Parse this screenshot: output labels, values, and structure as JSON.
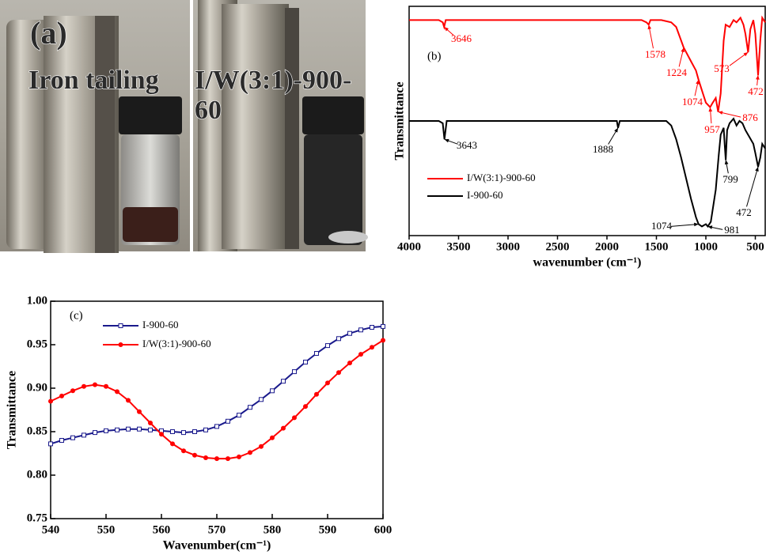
{
  "panel_a": {
    "label": "(a)",
    "left_caption": "Iron tailing",
    "right_caption": [
      "I/W(3:1)-900-",
      "60"
    ]
  },
  "chart_data": [
    {
      "type": "line",
      "panel_label": "(b)",
      "x_label": "wavenumber (cm⁻¹)",
      "y_label": "Transmittance",
      "xlim": [
        4000,
        400
      ],
      "xticks": [
        4000,
        3500,
        3000,
        2500,
        2000,
        1500,
        1000,
        500
      ],
      "ylim": [
        0,
        100
      ],
      "legend": "lower left",
      "series": [
        {
          "name": "I/W(3:1)-900-60",
          "color": "#ff0000",
          "x": [
            4000,
            3700,
            3660,
            3646,
            3630,
            3000,
            2000,
            1650,
            1600,
            1578,
            1560,
            1450,
            1350,
            1300,
            1224,
            1150,
            1100,
            1074,
            1030,
            1000,
            957,
            930,
            900,
            876,
            850,
            820,
            800,
            760,
            720,
            690,
            650,
            620,
            600,
            573,
            550,
            520,
            500,
            472,
            450,
            430,
            400
          ],
          "values": [
            94,
            94,
            93,
            91,
            94,
            94,
            94,
            94,
            93,
            92,
            94,
            94,
            93,
            91,
            82,
            76,
            72,
            68,
            62,
            58,
            56,
            58,
            60,
            54,
            62,
            85,
            92,
            91,
            94,
            93,
            95,
            92,
            88,
            80,
            90,
            94,
            88,
            70,
            85,
            95,
            93
          ],
          "peaks": [
            3646,
            1578,
            1224,
            1074,
            957,
            876,
            573,
            472
          ]
        },
        {
          "name": "I-900-60",
          "color": "#000000",
          "x": [
            4000,
            3700,
            3660,
            3643,
            3620,
            3000,
            2000,
            1900,
            1888,
            1870,
            1700,
            1500,
            1400,
            1350,
            1300,
            1250,
            1200,
            1150,
            1100,
            1074,
            1040,
            1000,
            981,
            950,
            900,
            870,
            850,
            820,
            810,
            799,
            785,
            760,
            720,
            690,
            660,
            630,
            600,
            560,
            520,
            500,
            472,
            450,
            430,
            400
          ],
          "values": [
            50,
            50,
            49,
            42,
            50,
            50,
            50,
            50,
            47,
            50,
            50,
            50,
            50,
            48,
            42,
            34,
            25,
            16,
            8,
            5,
            4,
            5,
            4,
            6,
            20,
            35,
            44,
            47,
            40,
            33,
            46,
            49,
            51,
            48,
            50,
            49,
            46,
            43,
            40,
            36,
            30,
            34,
            40,
            38
          ],
          "peaks": [
            3643,
            1888,
            1074,
            981,
            799,
            472
          ]
        }
      ]
    },
    {
      "type": "line",
      "panel_label": "(c)",
      "x_label": "Wavenumber(cm⁻¹)",
      "y_label": "Transmittance",
      "x": [
        540,
        542,
        544,
        546,
        548,
        550,
        552,
        554,
        556,
        558,
        560,
        562,
        564,
        566,
        568,
        570,
        572,
        574,
        576,
        578,
        580,
        582,
        584,
        586,
        588,
        590,
        592,
        594,
        596,
        598,
        600
      ],
      "xlim": [
        540,
        600
      ],
      "xticks": [
        540,
        550,
        560,
        570,
        580,
        590,
        600
      ],
      "ylim": [
        0.75,
        1.0
      ],
      "yticks": [
        0.75,
        {
          "value": 0.8,
          "label": "0.80"
        },
        0.85,
        {
          "value": 0.9,
          "label": "0.90"
        },
        0.95,
        {
          "value": 1.0,
          "label": "1.00"
        }
      ],
      "legend": "upper left",
      "series": [
        {
          "name": "I-900-60",
          "color": "#1a1a8c",
          "marker": "open-square",
          "values": [
            0.836,
            0.84,
            0.843,
            0.846,
            0.849,
            0.851,
            0.852,
            0.853,
            0.853,
            0.852,
            0.851,
            0.85,
            0.849,
            0.85,
            0.852,
            0.856,
            0.862,
            0.869,
            0.878,
            0.887,
            0.897,
            0.908,
            0.919,
            0.93,
            0.94,
            0.949,
            0.957,
            0.963,
            0.967,
            0.97,
            0.971
          ]
        },
        {
          "name": "I/W(3:1)-900-60",
          "color": "#ff0000",
          "marker": "circle",
          "values": [
            0.885,
            0.891,
            0.897,
            0.902,
            0.904,
            0.902,
            0.896,
            0.886,
            0.873,
            0.86,
            0.847,
            0.836,
            0.828,
            0.823,
            0.82,
            0.819,
            0.819,
            0.821,
            0.826,
            0.833,
            0.843,
            0.854,
            0.866,
            0.879,
            0.893,
            0.906,
            0.918,
            0.929,
            0.939,
            0.947,
            0.955
          ]
        }
      ]
    }
  ]
}
